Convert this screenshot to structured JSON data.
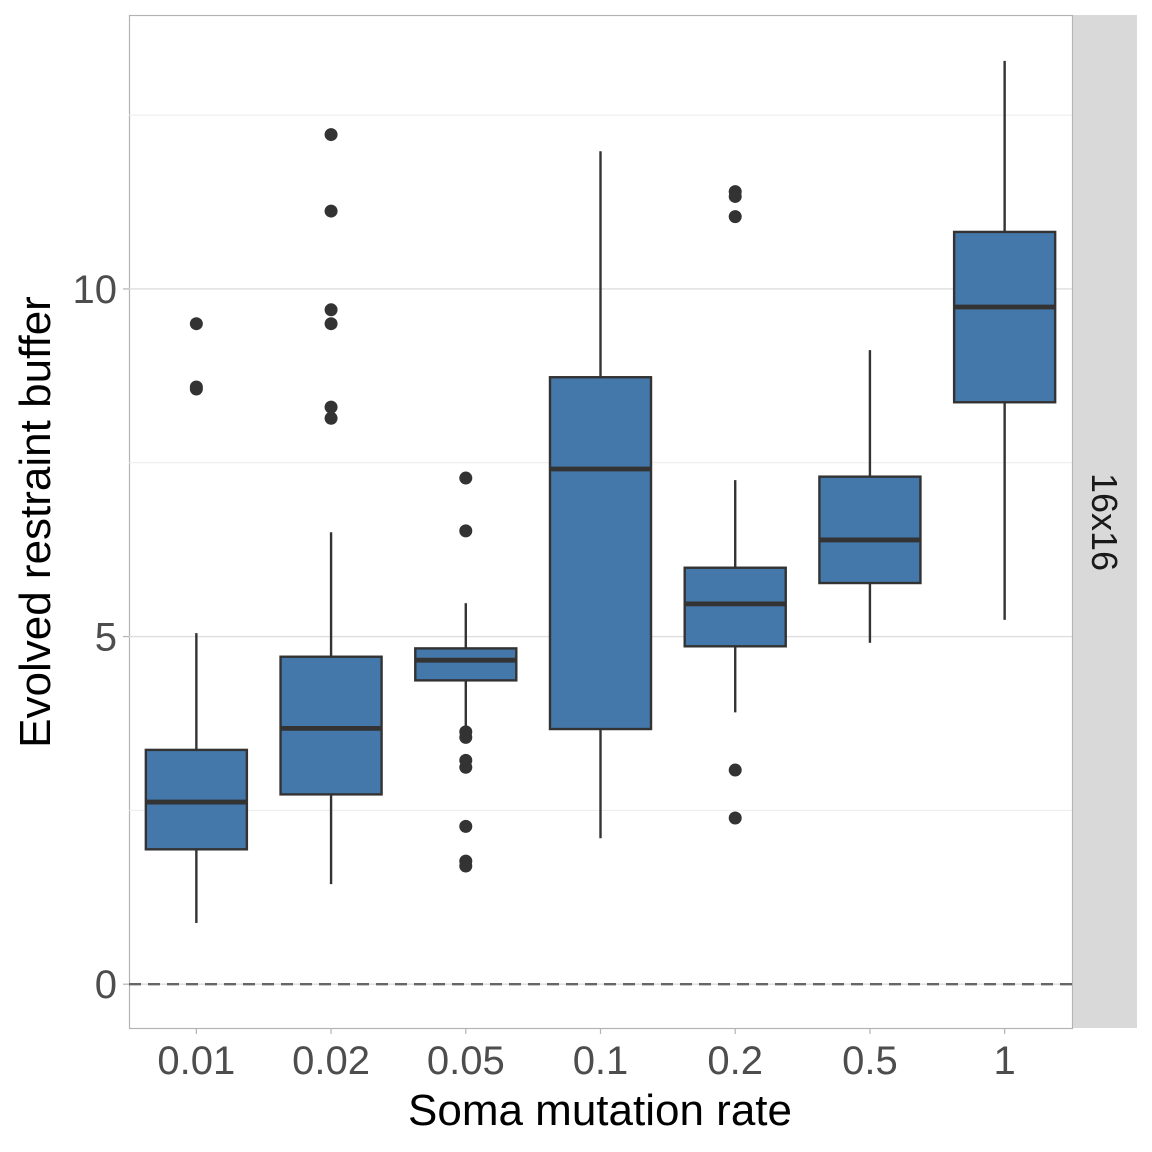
{
  "chart_data": {
    "type": "box",
    "title": "",
    "xlabel": "Soma mutation rate",
    "ylabel": "Evolved restraint buffer",
    "facet_label": "16x16",
    "categories": [
      "0.01",
      "0.02",
      "0.05",
      "0.1",
      "0.2",
      "0.5",
      "1"
    ],
    "ylim": [
      -0.63,
      13.94
    ],
    "y_ticks": [
      0,
      5,
      10
    ],
    "y_tick_labels": [
      "0",
      "5",
      "10"
    ],
    "y_minor_ticks": [
      2.5,
      7.5,
      12.5
    ],
    "reference_line": {
      "y": 0,
      "style": "dashed"
    },
    "grid": true,
    "fill_color": "#4477aa",
    "line_color": "#333333",
    "boxes": [
      {
        "category": "0.01",
        "whisker_low": 0.88,
        "q1": 1.94,
        "median": 2.62,
        "q3": 3.37,
        "whisker_high": 5.05,
        "outliers": [
          9.5,
          8.59,
          8.56
        ]
      },
      {
        "category": "0.02",
        "whisker_low": 1.44,
        "q1": 2.73,
        "median": 3.68,
        "q3": 4.71,
        "whisker_high": 6.5,
        "outliers": [
          12.22,
          11.12,
          9.7,
          9.5,
          8.3,
          8.14
        ]
      },
      {
        "category": "0.05",
        "whisker_low": 3.7,
        "q1": 4.37,
        "median": 4.66,
        "q3": 4.83,
        "whisker_high": 5.48,
        "outliers": [
          7.28,
          6.52,
          3.63,
          3.55,
          3.22,
          3.12,
          2.27,
          1.77,
          1.7
        ]
      },
      {
        "category": "0.1",
        "whisker_low": 2.1,
        "q1": 3.67,
        "median": 7.41,
        "q3": 8.73,
        "whisker_high": 11.98,
        "outliers": []
      },
      {
        "category": "0.2",
        "whisker_low": 3.91,
        "q1": 4.86,
        "median": 5.47,
        "q3": 5.99,
        "whisker_high": 7.25,
        "outliers": [
          11.4,
          11.33,
          11.04,
          3.08,
          2.39
        ]
      },
      {
        "category": "0.5",
        "whisker_low": 4.91,
        "q1": 5.77,
        "median": 6.39,
        "q3": 7.3,
        "whisker_high": 9.12,
        "outliers": []
      },
      {
        "category": "1",
        "whisker_low": 5.24,
        "q1": 8.37,
        "median": 9.74,
        "q3": 10.82,
        "whisker_high": 13.28,
        "outliers": []
      }
    ]
  }
}
